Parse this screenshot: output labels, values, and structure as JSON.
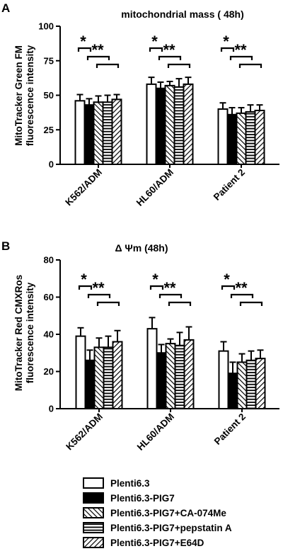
{
  "chart_data": [
    {
      "type": "bar",
      "panel": "A",
      "title": "mitochondrial mass ( 48h)",
      "ylabel_lines": [
        "MitoTracker Green FM",
        "fluorescence intensity"
      ],
      "ylim": [
        0,
        100
      ],
      "yticks": [
        "0",
        "25",
        "50",
        "75",
        "100"
      ],
      "categories": [
        "K562/ADM",
        "HL60/ADM",
        "Patient 2"
      ],
      "series": [
        {
          "name": "Plenti6.3",
          "values": [
            46,
            58,
            40
          ],
          "errors": [
            4.5,
            5,
            4.5
          ]
        },
        {
          "name": "Plenti6.3-PIG7",
          "values": [
            43,
            55,
            36
          ],
          "errors": [
            4.5,
            4.5,
            5
          ]
        },
        {
          "name": "Plenti6.3-PIG7+CA-074Me",
          "values": [
            45,
            57,
            37
          ],
          "errors": [
            4.5,
            3,
            4
          ]
        },
        {
          "name": "Plenti6.3-PIG7+pepstatin A",
          "values": [
            45,
            56,
            38
          ],
          "errors": [
            5,
            6,
            5
          ]
        },
        {
          "name": "Plenti6.3-PIG7+E64D",
          "values": [
            47,
            58,
            39
          ],
          "errors": [
            3.5,
            5,
            4
          ]
        }
      ],
      "annotations": [
        "*",
        "**"
      ]
    },
    {
      "type": "bar",
      "panel": "B",
      "title": "Δ Ψm (48h)",
      "ylabel_lines": [
        "MitoTracker Red CMXRos",
        "fluorescence intensity"
      ],
      "ylim": [
        0,
        80
      ],
      "yticks": [
        "0",
        "20",
        "40",
        "60",
        "80"
      ],
      "categories": [
        "K562/ADM",
        "HL60/ADM",
        "Patient 2"
      ],
      "series": [
        {
          "name": "Plenti6.3",
          "values": [
            39,
            43,
            31
          ],
          "errors": [
            4.5,
            6,
            5
          ]
        },
        {
          "name": "Plenti6.3-PIG7",
          "values": [
            26,
            30,
            19
          ],
          "errors": [
            5.5,
            4.5,
            6
          ]
        },
        {
          "name": "Plenti6.3-PIG7+CA-074Me",
          "values": [
            33,
            35,
            25
          ],
          "errors": [
            5,
            2.5,
            4.5
          ]
        },
        {
          "name": "Plenti6.3-PIG7+pepstatin A",
          "values": [
            33,
            34,
            26
          ],
          "errors": [
            6,
            7,
            5
          ]
        },
        {
          "name": "Plenti6.3-PIG7+E64D",
          "values": [
            36,
            37,
            27
          ],
          "errors": [
            6,
            7,
            4.5
          ]
        }
      ],
      "annotations": [
        "*",
        "**"
      ]
    }
  ],
  "legend": [
    {
      "label": "Plenti6.3",
      "pattern": "white"
    },
    {
      "label": "Plenti6.3-PIG7",
      "pattern": "black"
    },
    {
      "label": "Plenti6.3-PIG7+CA-074Me",
      "pattern": "diagonal-up"
    },
    {
      "label": "Plenti6.3-PIG7+pepstatin A",
      "pattern": "horizontal"
    },
    {
      "label": "Plenti6.3-PIG7+E64D",
      "pattern": "diagonal-down"
    }
  ]
}
